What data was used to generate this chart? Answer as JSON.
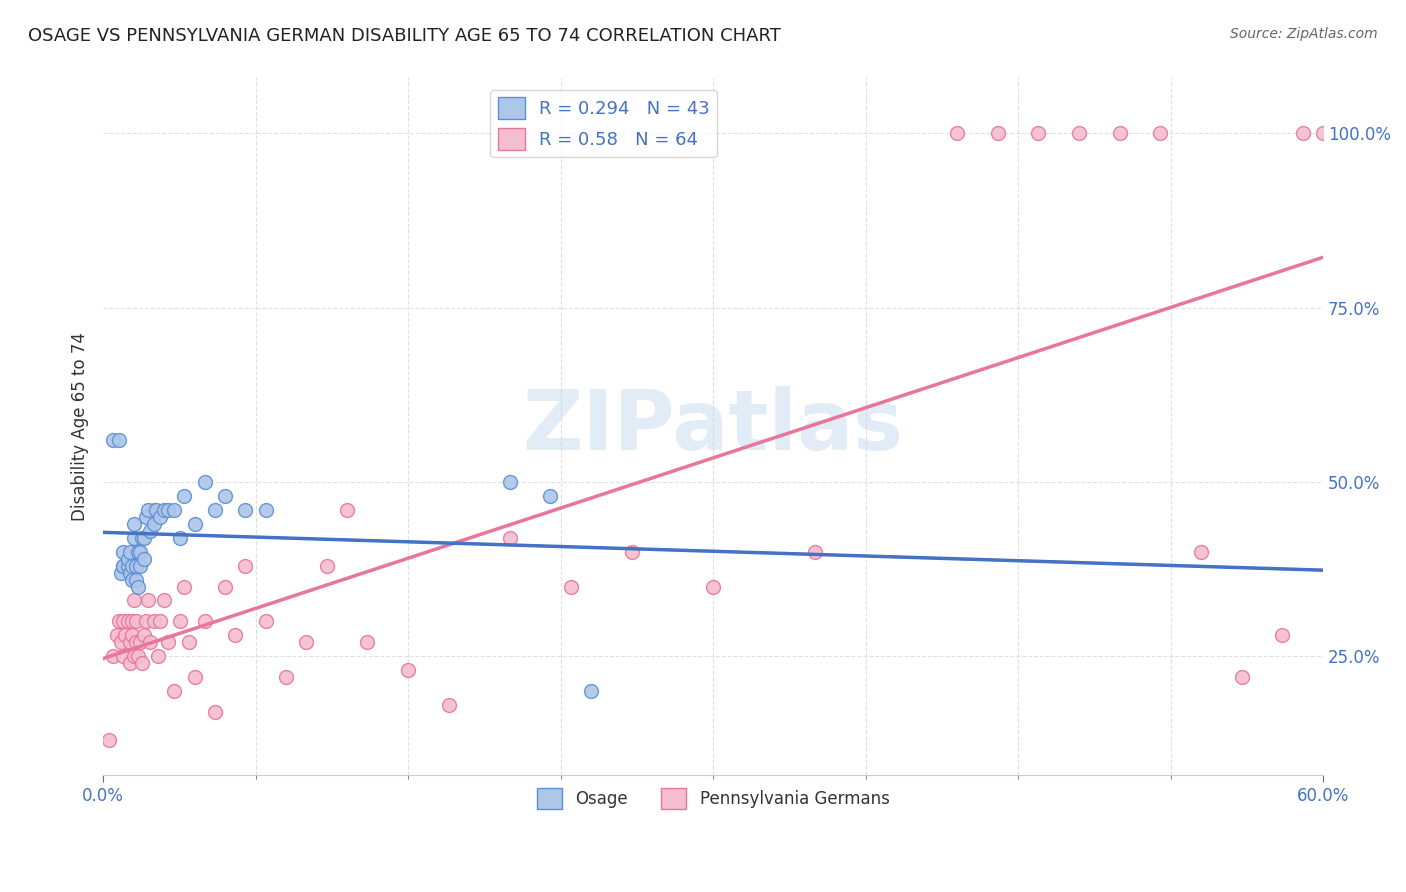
{
  "title": "OSAGE VS PENNSYLVANIA GERMAN DISABILITY AGE 65 TO 74 CORRELATION CHART",
  "source": "Source: ZipAtlas.com",
  "ylabel": "Disability Age 65 to 74",
  "ytick_values": [
    0.25,
    0.5,
    0.75,
    1.0
  ],
  "xmin": 0.0,
  "xmax": 0.6,
  "ymin": 0.08,
  "ymax": 1.08,
  "osage_fill_color": "#aec6e8",
  "osage_edge_color": "#5b8fd4",
  "osage_line_color": "#4472c4",
  "penn_fill_color": "#f5bdd0",
  "penn_edge_color": "#e8759a",
  "penn_line_color": "#e8759a",
  "dashed_line_color": "#aaaaaa",
  "osage_R": 0.294,
  "osage_N": 43,
  "penn_R": 0.58,
  "penn_N": 64,
  "tick_color": "#4472c4",
  "grid_color": "#e0e0e0",
  "bg_color": "#ffffff",
  "watermark": "ZIPatlas",
  "title_color": "#222222",
  "source_color": "#666666",
  "ylabel_color": "#333333",
  "osage_points_x": [
    0.005,
    0.008,
    0.009,
    0.01,
    0.01,
    0.01,
    0.012,
    0.012,
    0.013,
    0.013,
    0.014,
    0.014,
    0.015,
    0.015,
    0.016,
    0.016,
    0.017,
    0.017,
    0.018,
    0.018,
    0.019,
    0.02,
    0.02,
    0.021,
    0.022,
    0.023,
    0.025,
    0.026,
    0.028,
    0.03,
    0.032,
    0.035,
    0.038,
    0.04,
    0.045,
    0.05,
    0.055,
    0.06,
    0.07,
    0.08,
    0.2,
    0.22,
    0.24
  ],
  "osage_points_y": [
    0.56,
    0.56,
    0.37,
    0.38,
    0.38,
    0.4,
    0.38,
    0.39,
    0.37,
    0.4,
    0.38,
    0.36,
    0.42,
    0.44,
    0.38,
    0.36,
    0.4,
    0.35,
    0.38,
    0.4,
    0.42,
    0.39,
    0.42,
    0.45,
    0.46,
    0.43,
    0.44,
    0.46,
    0.45,
    0.46,
    0.46,
    0.46,
    0.42,
    0.48,
    0.44,
    0.5,
    0.46,
    0.48,
    0.46,
    0.46,
    0.5,
    0.48,
    0.2
  ],
  "penn_points_x": [
    0.003,
    0.005,
    0.007,
    0.008,
    0.009,
    0.01,
    0.01,
    0.011,
    0.012,
    0.013,
    0.013,
    0.014,
    0.014,
    0.015,
    0.015,
    0.016,
    0.016,
    0.017,
    0.018,
    0.019,
    0.02,
    0.021,
    0.022,
    0.023,
    0.025,
    0.025,
    0.027,
    0.028,
    0.03,
    0.032,
    0.035,
    0.038,
    0.04,
    0.042,
    0.045,
    0.05,
    0.055,
    0.06,
    0.065,
    0.07,
    0.08,
    0.09,
    0.1,
    0.11,
    0.12,
    0.13,
    0.15,
    0.17,
    0.2,
    0.23,
    0.26,
    0.3,
    0.35,
    0.42,
    0.44,
    0.46,
    0.48,
    0.5,
    0.52,
    0.54,
    0.56,
    0.58,
    0.59,
    0.6
  ],
  "penn_points_y": [
    0.13,
    0.25,
    0.28,
    0.3,
    0.27,
    0.3,
    0.25,
    0.28,
    0.3,
    0.27,
    0.24,
    0.3,
    0.28,
    0.33,
    0.25,
    0.3,
    0.27,
    0.25,
    0.27,
    0.24,
    0.28,
    0.3,
    0.33,
    0.27,
    0.3,
    0.46,
    0.25,
    0.3,
    0.33,
    0.27,
    0.2,
    0.3,
    0.35,
    0.27,
    0.22,
    0.3,
    0.17,
    0.35,
    0.28,
    0.38,
    0.3,
    0.22,
    0.27,
    0.38,
    0.46,
    0.27,
    0.23,
    0.18,
    0.42,
    0.35,
    0.4,
    0.35,
    0.4,
    1.0,
    1.0,
    1.0,
    1.0,
    1.0,
    1.0,
    0.4,
    0.22,
    0.28,
    1.0,
    1.0
  ]
}
